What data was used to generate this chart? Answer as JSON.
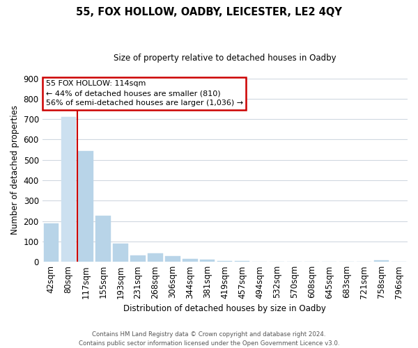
{
  "title": "55, FOX HOLLOW, OADBY, LEICESTER, LE2 4QY",
  "subtitle": "Size of property relative to detached houses in Oadby",
  "xlabel": "Distribution of detached houses by size in Oadby",
  "ylabel": "Number of detached properties",
  "bin_labels": [
    "42sqm",
    "80sqm",
    "117sqm",
    "155sqm",
    "193sqm",
    "231sqm",
    "268sqm",
    "306sqm",
    "344sqm",
    "381sqm",
    "419sqm",
    "457sqm",
    "494sqm",
    "532sqm",
    "570sqm",
    "608sqm",
    "645sqm",
    "683sqm",
    "721sqm",
    "758sqm",
    "796sqm"
  ],
  "bar_values": [
    190,
    710,
    545,
    225,
    90,
    32,
    40,
    27,
    13,
    12,
    5,
    5,
    0,
    0,
    0,
    0,
    0,
    0,
    0,
    8,
    0
  ],
  "highlight_bar_index": 1,
  "highlight_color": "#cce0f0",
  "normal_color": "#b8d4e8",
  "red_line_x": 1.5,
  "annotation_line1": "55 FOX HOLLOW: 114sqm",
  "annotation_line2": "← 44% of detached houses are smaller (810)",
  "annotation_line3": "56% of semi-detached houses are larger (1,036) →",
  "annotation_box_color": "#ffffff",
  "annotation_box_edge": "#cc0000",
  "ylim": [
    0,
    900
  ],
  "yticks": [
    0,
    100,
    200,
    300,
    400,
    500,
    600,
    700,
    800,
    900
  ],
  "footer_line1": "Contains HM Land Registry data © Crown copyright and database right 2024.",
  "footer_line2": "Contains public sector information licensed under the Open Government Licence v3.0.",
  "background_color": "#ffffff",
  "grid_color": "#d0d8e0"
}
